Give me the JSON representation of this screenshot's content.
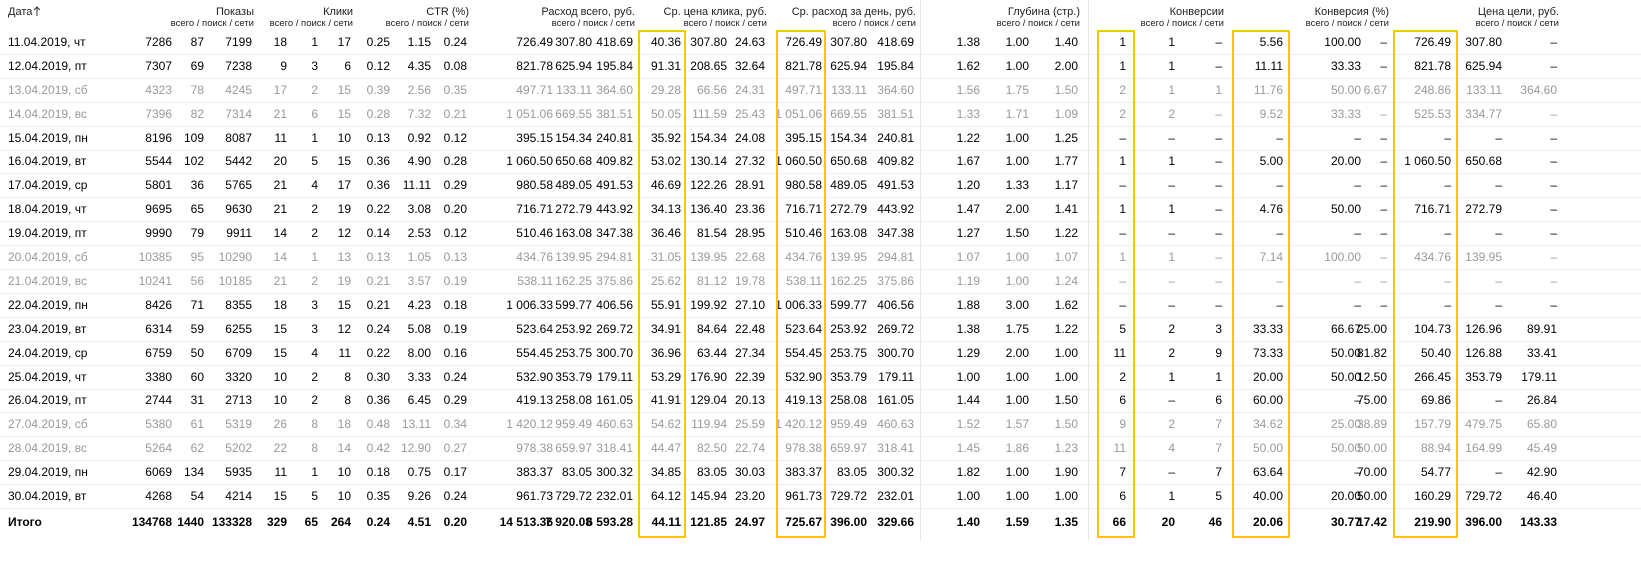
{
  "header": {
    "date_label": "Дата",
    "sub_label": "всего / поиск / сети",
    "groups": [
      {
        "label": "Показы"
      },
      {
        "label": "Клики"
      },
      {
        "label": "CTR (%)"
      },
      {
        "label": "Расход всего, руб."
      },
      {
        "label": "Ср. цена клика, руб.",
        "highlighted": true
      },
      {
        "label": "Ср. расход за день, руб.",
        "highlighted": true
      },
      {
        "label": "Глубина (стр.)"
      },
      {
        "label": "Конверсии",
        "highlighted": true
      },
      {
        "label": "Конверсия (%)",
        "highlighted": true
      },
      {
        "label": "Цена цели, руб.",
        "highlighted": true
      }
    ]
  },
  "table": {
    "rows": [
      {
        "date": "11.04.2019, чт",
        "cells": [
          "7286",
          "87",
          "7199",
          "18",
          "1",
          "17",
          "0.25",
          "1.15",
          "0.24",
          "726.49",
          "307.80",
          "418.69",
          "40.36",
          "307.80",
          "24.63",
          "726.49",
          "307.80",
          "418.69",
          "1.38",
          "1.00",
          "1.40",
          "1",
          "1",
          "–",
          "5.56",
          "100.00",
          "–",
          "726.49",
          "307.80",
          "–"
        ]
      },
      {
        "date": "12.04.2019, пт",
        "cells": [
          "7307",
          "69",
          "7238",
          "9",
          "3",
          "6",
          "0.12",
          "4.35",
          "0.08",
          "821.78",
          "625.94",
          "195.84",
          "91.31",
          "208.65",
          "32.64",
          "821.78",
          "625.94",
          "195.84",
          "1.62",
          "1.00",
          "2.00",
          "1",
          "1",
          "–",
          "11.11",
          "33.33",
          "–",
          "821.78",
          "625.94",
          "–"
        ]
      },
      {
        "date": "13.04.2019, сб",
        "muted": true,
        "cells": [
          "4323",
          "78",
          "4245",
          "17",
          "2",
          "15",
          "0.39",
          "2.56",
          "0.35",
          "497.71",
          "133.11",
          "364.60",
          "29.28",
          "66.56",
          "24.31",
          "497.71",
          "133.11",
          "364.60",
          "1.56",
          "1.75",
          "1.50",
          "2",
          "1",
          "1",
          "11.76",
          "50.00",
          "6.67",
          "248.86",
          "133.11",
          "364.60"
        ]
      },
      {
        "date": "14.04.2019, вс",
        "muted": true,
        "cells": [
          "7396",
          "82",
          "7314",
          "21",
          "6",
          "15",
          "0.28",
          "7.32",
          "0.21",
          "1 051.06",
          "669.55",
          "381.51",
          "50.05",
          "111.59",
          "25.43",
          "1 051.06",
          "669.55",
          "381.51",
          "1.33",
          "1.71",
          "1.09",
          "2",
          "2",
          "–",
          "9.52",
          "33.33",
          "–",
          "525.53",
          "334.77",
          "–"
        ]
      },
      {
        "date": "15.04.2019, пн",
        "cells": [
          "8196",
          "109",
          "8087",
          "11",
          "1",
          "10",
          "0.13",
          "0.92",
          "0.12",
          "395.15",
          "154.34",
          "240.81",
          "35.92",
          "154.34",
          "24.08",
          "395.15",
          "154.34",
          "240.81",
          "1.22",
          "1.00",
          "1.25",
          "–",
          "–",
          "–",
          "–",
          "–",
          "–",
          "–",
          "–",
          "–"
        ]
      },
      {
        "date": "16.04.2019, вт",
        "cells": [
          "5544",
          "102",
          "5442",
          "20",
          "5",
          "15",
          "0.36",
          "4.90",
          "0.28",
          "1 060.50",
          "650.68",
          "409.82",
          "53.02",
          "130.14",
          "27.32",
          "1 060.50",
          "650.68",
          "409.82",
          "1.67",
          "1.00",
          "1.77",
          "1",
          "1",
          "–",
          "5.00",
          "20.00",
          "–",
          "1 060.50",
          "650.68",
          "–"
        ]
      },
      {
        "date": "17.04.2019, ср",
        "cells": [
          "5801",
          "36",
          "5765",
          "21",
          "4",
          "17",
          "0.36",
          "11.11",
          "0.29",
          "980.58",
          "489.05",
          "491.53",
          "46.69",
          "122.26",
          "28.91",
          "980.58",
          "489.05",
          "491.53",
          "1.20",
          "1.33",
          "1.17",
          "–",
          "–",
          "–",
          "–",
          "–",
          "–",
          "–",
          "–",
          "–"
        ]
      },
      {
        "date": "18.04.2019, чт",
        "cells": [
          "9695",
          "65",
          "9630",
          "21",
          "2",
          "19",
          "0.22",
          "3.08",
          "0.20",
          "716.71",
          "272.79",
          "443.92",
          "34.13",
          "136.40",
          "23.36",
          "716.71",
          "272.79",
          "443.92",
          "1.47",
          "2.00",
          "1.41",
          "1",
          "1",
          "–",
          "4.76",
          "50.00",
          "–",
          "716.71",
          "272.79",
          "–"
        ]
      },
      {
        "date": "19.04.2019, пт",
        "cells": [
          "9990",
          "79",
          "9911",
          "14",
          "2",
          "12",
          "0.14",
          "2.53",
          "0.12",
          "510.46",
          "163.08",
          "347.38",
          "36.46",
          "81.54",
          "28.95",
          "510.46",
          "163.08",
          "347.38",
          "1.27",
          "1.50",
          "1.22",
          "–",
          "–",
          "–",
          "–",
          "–",
          "–",
          "–",
          "–",
          "–"
        ]
      },
      {
        "date": "20.04.2019, сб",
        "muted": true,
        "cells": [
          "10385",
          "95",
          "10290",
          "14",
          "1",
          "13",
          "0.13",
          "1.05",
          "0.13",
          "434.76",
          "139.95",
          "294.81",
          "31.05",
          "139.95",
          "22.68",
          "434.76",
          "139.95",
          "294.81",
          "1.07",
          "1.00",
          "1.07",
          "1",
          "1",
          "–",
          "7.14",
          "100.00",
          "–",
          "434.76",
          "139.95",
          "–"
        ]
      },
      {
        "date": "21.04.2019, вс",
        "muted": true,
        "cells": [
          "10241",
          "56",
          "10185",
          "21",
          "2",
          "19",
          "0.21",
          "3.57",
          "0.19",
          "538.11",
          "162.25",
          "375.86",
          "25.62",
          "81.12",
          "19.78",
          "538.11",
          "162.25",
          "375.86",
          "1.19",
          "1.00",
          "1.24",
          "–",
          "–",
          "–",
          "–",
          "–",
          "–",
          "–",
          "–",
          "–"
        ]
      },
      {
        "date": "22.04.2019, пн",
        "cells": [
          "8426",
          "71",
          "8355",
          "18",
          "3",
          "15",
          "0.21",
          "4.23",
          "0.18",
          "1 006.33",
          "599.77",
          "406.56",
          "55.91",
          "199.92",
          "27.10",
          "1 006.33",
          "599.77",
          "406.56",
          "1.88",
          "3.00",
          "1.62",
          "–",
          "–",
          "–",
          "–",
          "–",
          "–",
          "–",
          "–",
          "–"
        ]
      },
      {
        "date": "23.04.2019, вт",
        "cells": [
          "6314",
          "59",
          "6255",
          "15",
          "3",
          "12",
          "0.24",
          "5.08",
          "0.19",
          "523.64",
          "253.92",
          "269.72",
          "34.91",
          "84.64",
          "22.48",
          "523.64",
          "253.92",
          "269.72",
          "1.38",
          "1.75",
          "1.22",
          "5",
          "2",
          "3",
          "33.33",
          "66.67",
          "25.00",
          "104.73",
          "126.96",
          "89.91"
        ]
      },
      {
        "date": "24.04.2019, ср",
        "cells": [
          "6759",
          "50",
          "6709",
          "15",
          "4",
          "11",
          "0.22",
          "8.00",
          "0.16",
          "554.45",
          "253.75",
          "300.70",
          "36.96",
          "63.44",
          "27.34",
          "554.45",
          "253.75",
          "300.70",
          "1.29",
          "2.00",
          "1.00",
          "11",
          "2",
          "9",
          "73.33",
          "50.00",
          "81.82",
          "50.40",
          "126.88",
          "33.41"
        ]
      },
      {
        "date": "25.04.2019, чт",
        "cells": [
          "3380",
          "60",
          "3320",
          "10",
          "2",
          "8",
          "0.30",
          "3.33",
          "0.24",
          "532.90",
          "353.79",
          "179.11",
          "53.29",
          "176.90",
          "22.39",
          "532.90",
          "353.79",
          "179.11",
          "1.00",
          "1.00",
          "1.00",
          "2",
          "1",
          "1",
          "20.00",
          "50.00",
          "12.50",
          "266.45",
          "353.79",
          "179.11"
        ]
      },
      {
        "date": "26.04.2019, пт",
        "cells": [
          "2744",
          "31",
          "2713",
          "10",
          "2",
          "8",
          "0.36",
          "6.45",
          "0.29",
          "419.13",
          "258.08",
          "161.05",
          "41.91",
          "129.04",
          "20.13",
          "419.13",
          "258.08",
          "161.05",
          "1.44",
          "1.00",
          "1.50",
          "6",
          "–",
          "6",
          "60.00",
          "–",
          "75.00",
          "69.86",
          "–",
          "26.84"
        ]
      },
      {
        "date": "27.04.2019, сб",
        "muted": true,
        "cells": [
          "5380",
          "61",
          "5319",
          "26",
          "8",
          "18",
          "0.48",
          "13.11",
          "0.34",
          "1 420.12",
          "959.49",
          "460.63",
          "54.62",
          "119.94",
          "25.59",
          "1 420.12",
          "959.49",
          "460.63",
          "1.52",
          "1.57",
          "1.50",
          "9",
          "2",
          "7",
          "34.62",
          "25.00",
          "38.89",
          "157.79",
          "479.75",
          "65.80"
        ]
      },
      {
        "date": "28.04.2019, вс",
        "muted": true,
        "cells": [
          "5264",
          "62",
          "5202",
          "22",
          "8",
          "14",
          "0.42",
          "12.90",
          "0.27",
          "978.38",
          "659.97",
          "318.41",
          "44.47",
          "82.50",
          "22.74",
          "978.38",
          "659.97",
          "318.41",
          "1.45",
          "1.86",
          "1.23",
          "11",
          "4",
          "7",
          "50.00",
          "50.00",
          "50.00",
          "88.94",
          "164.99",
          "45.49"
        ]
      },
      {
        "date": "29.04.2019, пн",
        "cells": [
          "6069",
          "134",
          "5935",
          "11",
          "1",
          "10",
          "0.18",
          "0.75",
          "0.17",
          "383.37",
          "83.05",
          "300.32",
          "34.85",
          "83.05",
          "30.03",
          "383.37",
          "83.05",
          "300.32",
          "1.82",
          "1.00",
          "1.90",
          "7",
          "–",
          "7",
          "63.64",
          "–",
          "70.00",
          "54.77",
          "–",
          "42.90"
        ]
      },
      {
        "date": "30.04.2019, вт",
        "cells": [
          "4268",
          "54",
          "4214",
          "15",
          "5",
          "10",
          "0.35",
          "9.26",
          "0.24",
          "961.73",
          "729.72",
          "232.01",
          "64.12",
          "145.94",
          "23.20",
          "961.73",
          "729.72",
          "232.01",
          "1.00",
          "1.00",
          "1.00",
          "6",
          "1",
          "5",
          "40.00",
          "20.00",
          "50.00",
          "160.29",
          "729.72",
          "46.40"
        ]
      }
    ],
    "total": {
      "label": "Итого",
      "cells": [
        "134768",
        "1440",
        "133328",
        "329",
        "65",
        "264",
        "0.24",
        "4.51",
        "0.20",
        "14 513.36",
        "7 920.08",
        "6 593.28",
        "44.11",
        "121.85",
        "24.97",
        "725.67",
        "396.00",
        "329.66",
        "1.40",
        "1.59",
        "1.35",
        "66",
        "20",
        "46",
        "20.06",
        "30.77",
        "17.42",
        "219.90",
        "396.00",
        "143.33"
      ]
    }
  }
}
